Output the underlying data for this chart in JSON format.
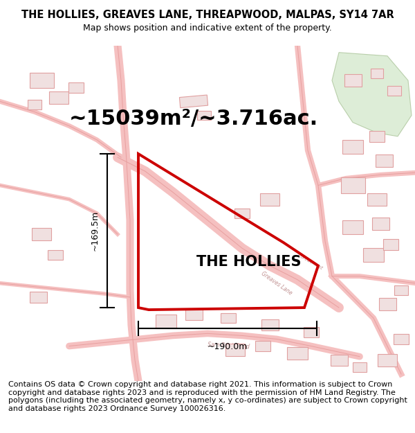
{
  "title": "THE HOLLIES, GREAVES LANE, THREAPWOOD, MALPAS, SY14 7AR",
  "subtitle": "Map shows position and indicative extent of the property.",
  "area_label": "~15039m²/~3.716ac.",
  "property_label": "THE HOLLIES",
  "dim_left": "~169.5m",
  "dim_bottom": "~190.0m",
  "footer": "Contains OS data © Crown copyright and database right 2021. This information is subject to Crown copyright and database rights 2023 and is reproduced with the permission of HM Land Registry. The polygons (including the associated geometry, namely x, y co-ordinates) are subject to Crown copyright and database rights 2023 Ordnance Survey 100026316.",
  "title_fontsize": 10.5,
  "subtitle_fontsize": 9,
  "area_fontsize": 22,
  "property_fontsize": 15,
  "dim_fontsize": 9,
  "footer_fontsize": 8.0,
  "map_bg": "#ffffff",
  "road_color": "#f5c0c0",
  "road_outline": "#e8a0a0",
  "building_face": "#f0e0e0",
  "building_edge": "#e0a0a0",
  "green_face": "#d8ead0",
  "green_edge": "#b0c8a0",
  "red_color": "#cc0000"
}
